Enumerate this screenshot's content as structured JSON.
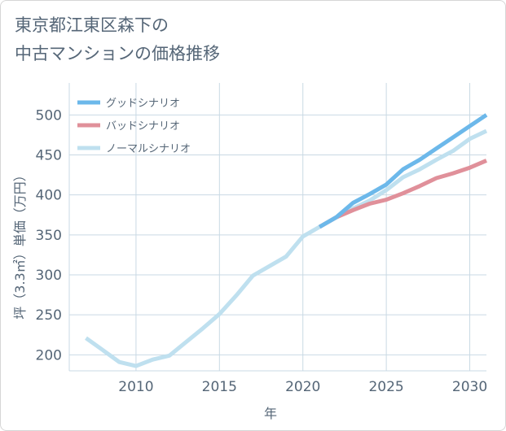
{
  "title": "東京都江東区森下の\n中古マンションの価格推移",
  "chart_data": {
    "type": "line",
    "xlabel": "年",
    "ylabel": "坪（3.3㎡）単価（万円）",
    "xlim": [
      2006,
      2031
    ],
    "ylim": [
      180,
      540
    ],
    "xticks": [
      2010,
      2015,
      2020,
      2025,
      2030
    ],
    "yticks": [
      200,
      250,
      300,
      350,
      400,
      450,
      500
    ],
    "grid": true,
    "legend_position": "top-left",
    "series": [
      {
        "name": "グッドシナリオ",
        "color": "#6cb8ea",
        "x": [
          2021,
          2022,
          2023,
          2024,
          2025,
          2026,
          2027,
          2028,
          2029,
          2030,
          2031
        ],
        "y": [
          360,
          372,
          390,
          401,
          413,
          432,
          444,
          458,
          472,
          486,
          500
        ]
      },
      {
        "name": "バッドシナリオ",
        "color": "#e0909a",
        "x": [
          2021,
          2022,
          2023,
          2024,
          2025,
          2026,
          2027,
          2028,
          2029,
          2030,
          2031
        ],
        "y": [
          360,
          372,
          381,
          389,
          394,
          402,
          411,
          421,
          427,
          434,
          443
        ]
      },
      {
        "name": "ノーマルシナリオ",
        "color": "#bfe0ef",
        "x": [
          2007,
          2008,
          2009,
          2010,
          2011,
          2012,
          2013,
          2014,
          2015,
          2016,
          2017,
          2018,
          2019,
          2020,
          2021,
          2022,
          2023,
          2024,
          2025,
          2026,
          2027,
          2028,
          2029,
          2030,
          2031
        ],
        "y": [
          221,
          206,
          191,
          186,
          194,
          199,
          216,
          233,
          251,
          274,
          299,
          311,
          323,
          348,
          360,
          372,
          383,
          393,
          406,
          422,
          432,
          444,
          455,
          470,
          480
        ]
      }
    ]
  }
}
